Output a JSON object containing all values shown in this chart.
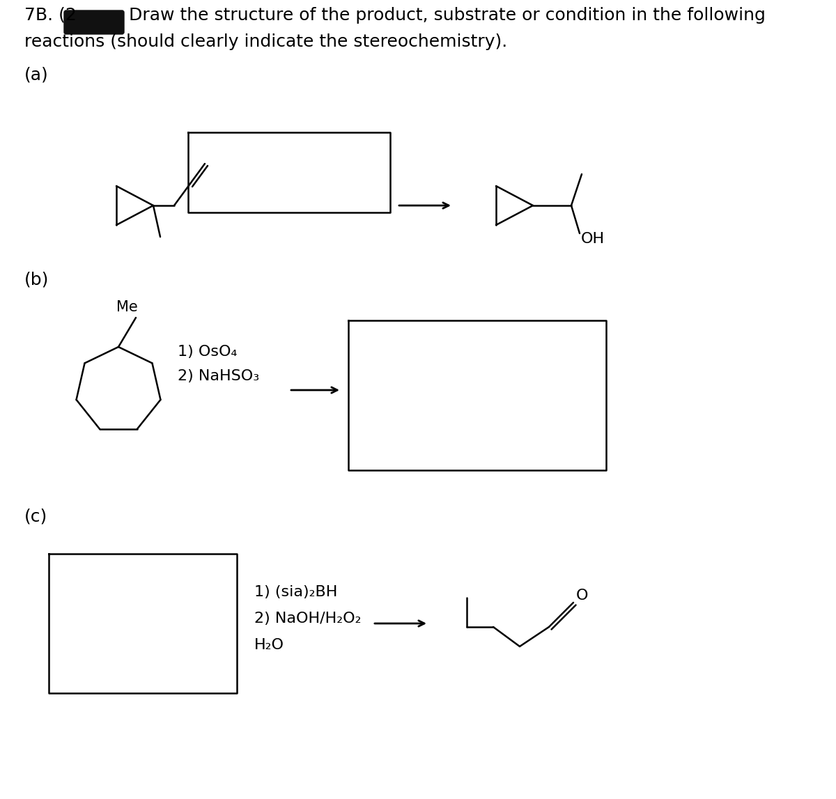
{
  "bg_color": "#ffffff",
  "text_color": "#000000",
  "box_color": "#000000",
  "redacted_color": "#111111",
  "title_part1": "7B. (2",
  "title_part2": "Draw the structure of the product, substrate or condition in the following",
  "title_line2": "reactions (should clearly indicate the stereochemistry).",
  "label_a": "(a)",
  "label_b": "(b)",
  "label_c": "(c)",
  "conditions_b_1": "1) OsO₄",
  "conditions_b_2": "2) NaHSO₃",
  "conditions_c_1": "1) (sia)₂BH",
  "conditions_c_2": "2) NaOH/H₂O₂",
  "conditions_c_3": "H₂O",
  "label_oh": "OH",
  "label_me": "Me",
  "label_o": "O"
}
